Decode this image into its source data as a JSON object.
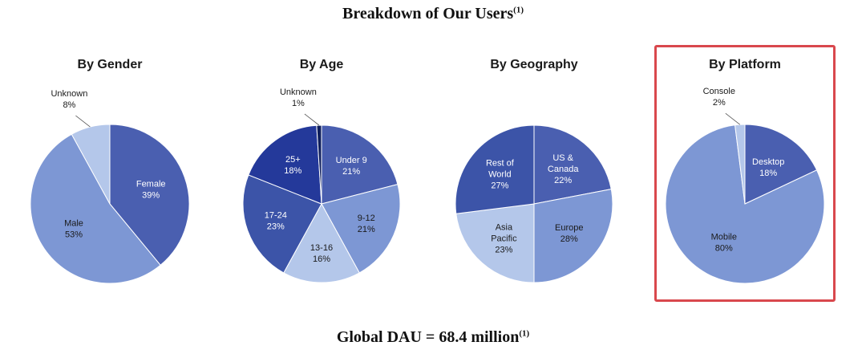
{
  "title": "Breakdown of Our Users",
  "title_note": "(1)",
  "footer": "Global DAU = 68.4 million",
  "footer_note": "(1)",
  "chart_data": [
    {
      "type": "pie",
      "title": "By Gender",
      "slices": [
        {
          "label": "Female",
          "value": 39,
          "color": "#4a5fb0",
          "text_color": "#ffffff"
        },
        {
          "label": "Male",
          "value": 53,
          "color": "#7d97d4",
          "text_color": "#1a1a1a"
        },
        {
          "label": "Unknown",
          "value": 8,
          "color": "#b4c7ea",
          "text_color": "#1a1a1a",
          "outside": true
        }
      ]
    },
    {
      "type": "pie",
      "title": "By Age",
      "slices": [
        {
          "label": "Under 9",
          "value": 21,
          "color": "#4a5fb0",
          "text_color": "#ffffff"
        },
        {
          "label": "9-12",
          "value": 21,
          "color": "#7d97d4",
          "text_color": "#1a1a1a"
        },
        {
          "label": "13-16",
          "value": 16,
          "color": "#b4c7ea",
          "text_color": "#1a1a1a"
        },
        {
          "label": "17-24",
          "value": 23,
          "color": "#3c54a8",
          "text_color": "#ffffff"
        },
        {
          "label": "25+",
          "value": 18,
          "color": "#24399a",
          "text_color": "#ffffff"
        },
        {
          "label": "Unknown",
          "value": 1,
          "color": "#0e1e5c",
          "text_color": "#1a1a1a",
          "outside": true
        }
      ]
    },
    {
      "type": "pie",
      "title": "By Geography",
      "slices": [
        {
          "label": "US & Canada",
          "value": 22,
          "color": "#4a5fb0",
          "text_color": "#ffffff"
        },
        {
          "label": "Europe",
          "value": 28,
          "color": "#7d97d4",
          "text_color": "#1a1a1a"
        },
        {
          "label": "Asia Pacific",
          "value": 23,
          "color": "#b4c7ea",
          "text_color": "#1a1a1a"
        },
        {
          "label": "Rest of World",
          "value": 27,
          "color": "#3c54a8",
          "text_color": "#ffffff"
        }
      ]
    },
    {
      "type": "pie",
      "title": "By Platform",
      "highlighted": true,
      "slices": [
        {
          "label": "Desktop",
          "value": 18,
          "color": "#4a5fb0",
          "text_color": "#ffffff"
        },
        {
          "label": "Mobile",
          "value": 80,
          "color": "#7d97d4",
          "text_color": "#1a1a1a"
        },
        {
          "label": "Console",
          "value": 2,
          "color": "#b4c7ea",
          "text_color": "#1a1a1a",
          "outside": true
        }
      ]
    }
  ]
}
